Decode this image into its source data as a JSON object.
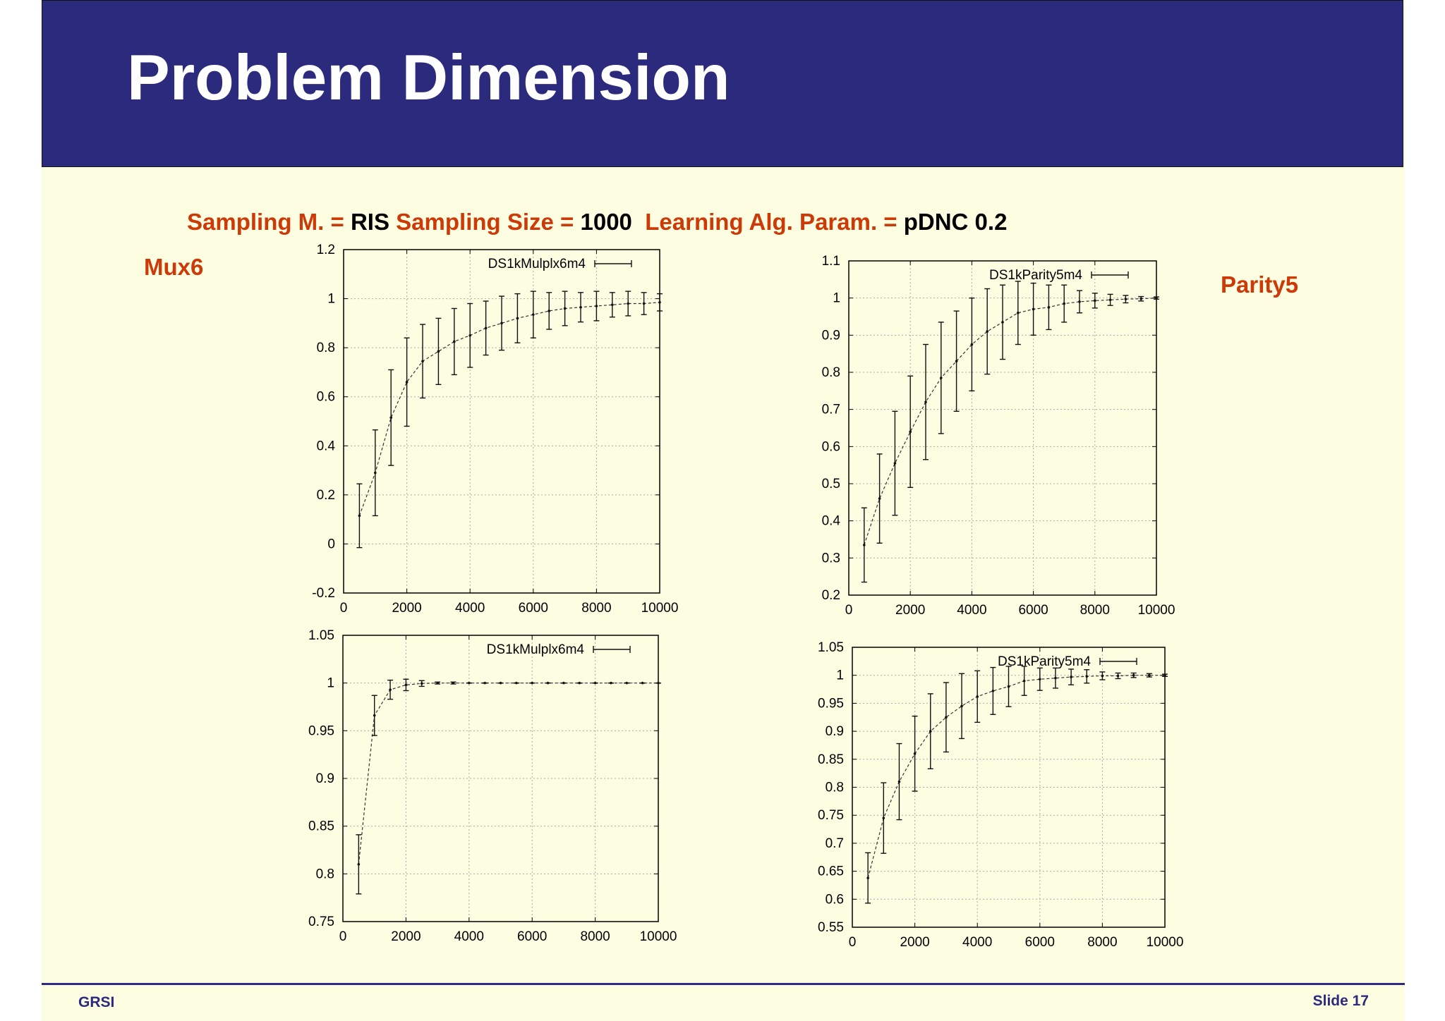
{
  "slide": {
    "title": "Problem Dimension",
    "params": {
      "sampling_method_label": "Sampling M. =",
      "sampling_method_value": "RIS",
      "sampling_size_label": "Sampling Size =",
      "sampling_size_value": "1000",
      "learning_param_label": "Learning Alg. Param. =",
      "learning_param_value": "pDNC 0.2"
    },
    "left_label": "Mux6",
    "right_label": "Parity5",
    "footer": {
      "left": "GRSI",
      "right": "Slide 17"
    }
  },
  "colors": {
    "header_bg": "#2b2a7d",
    "slide_bg": "#fdfde2",
    "accent": "#cc3a08",
    "text_dark": "#000000"
  },
  "chart_data": [
    {
      "type": "line",
      "legend": "DS1kMulplx6m4",
      "legend_position": "top-right",
      "grid": true,
      "xlim": [
        0,
        10000
      ],
      "ylim": [
        -0.2,
        1.2
      ],
      "xticks": [
        0,
        2000,
        4000,
        6000,
        8000,
        10000
      ],
      "yticks": [
        -0.2,
        0,
        0.2,
        0.4,
        0.6,
        0.8,
        1,
        1.2
      ],
      "ytick_labels": [
        "-0.2",
        "0",
        "0.2",
        "0.4",
        "0.6",
        "0.8",
        "1",
        "1.2"
      ],
      "x": [
        500,
        1000,
        1500,
        2000,
        2500,
        3000,
        3500,
        4000,
        4500,
        5000,
        5500,
        6000,
        6500,
        7000,
        7500,
        8000,
        8500,
        9000,
        9500,
        10000
      ],
      "y": [
        0.115,
        0.29,
        0.515,
        0.66,
        0.745,
        0.785,
        0.825,
        0.85,
        0.88,
        0.9,
        0.92,
        0.935,
        0.95,
        0.96,
        0.965,
        0.97,
        0.975,
        0.98,
        0.98,
        0.985
      ],
      "err": [
        0.13,
        0.175,
        0.195,
        0.18,
        0.15,
        0.135,
        0.135,
        0.13,
        0.11,
        0.11,
        0.1,
        0.095,
        0.075,
        0.07,
        0.06,
        0.06,
        0.05,
        0.05,
        0.045,
        0.035
      ]
    },
    {
      "type": "line",
      "legend": "DS1kParity5m4",
      "legend_position": "top-right",
      "grid": true,
      "xlim": [
        0,
        10000
      ],
      "ylim": [
        0.2,
        1.1
      ],
      "xticks": [
        0,
        2000,
        4000,
        6000,
        8000,
        10000
      ],
      "yticks": [
        0.2,
        0.3,
        0.4,
        0.5,
        0.6,
        0.7,
        0.8,
        0.9,
        1,
        1.1
      ],
      "ytick_labels": [
        "0.2",
        "0.3",
        "0.4",
        "0.5",
        "0.6",
        "0.7",
        "0.8",
        "0.9",
        "1",
        "1.1"
      ],
      "x": [
        500,
        1000,
        1500,
        2000,
        2500,
        3000,
        3500,
        4000,
        4500,
        5000,
        5500,
        6000,
        6500,
        7000,
        7500,
        8000,
        8500,
        9000,
        9500,
        10000
      ],
      "y": [
        0.335,
        0.46,
        0.555,
        0.64,
        0.72,
        0.785,
        0.83,
        0.875,
        0.91,
        0.935,
        0.96,
        0.97,
        0.975,
        0.985,
        0.99,
        0.993,
        0.995,
        0.997,
        0.998,
        1.0
      ],
      "err": [
        0.1,
        0.12,
        0.14,
        0.15,
        0.155,
        0.15,
        0.135,
        0.125,
        0.115,
        0.1,
        0.085,
        0.07,
        0.06,
        0.05,
        0.03,
        0.02,
        0.015,
        0.01,
        0.006,
        0.003
      ]
    },
    {
      "type": "line",
      "legend": "DS1kMulplx6m4",
      "legend_position": "top-right",
      "grid": true,
      "xlim": [
        0,
        10000
      ],
      "ylim": [
        0.75,
        1.05
      ],
      "xticks": [
        0,
        2000,
        4000,
        6000,
        8000,
        10000
      ],
      "yticks": [
        0.75,
        0.8,
        0.85,
        0.9,
        0.95,
        1,
        1.05
      ],
      "ytick_labels": [
        "0.75",
        "0.8",
        "0.85",
        "0.9",
        "0.95",
        "1",
        "1.05"
      ],
      "x": [
        500,
        1000,
        1500,
        2000,
        2500,
        3000,
        3500,
        4000,
        4500,
        5000,
        5500,
        6000,
        6500,
        7000,
        7500,
        8000,
        8500,
        9000,
        9500,
        10000
      ],
      "y": [
        0.81,
        0.966,
        0.993,
        0.998,
        0.9995,
        1,
        1,
        1,
        1,
        1,
        1,
        1,
        1,
        1,
        1,
        1,
        1,
        1,
        1,
        1
      ],
      "err": [
        0.031,
        0.021,
        0.01,
        0.006,
        0.003,
        0.001,
        0.001,
        0,
        0,
        0,
        0,
        0,
        0,
        0,
        0,
        0,
        0,
        0,
        0,
        0
      ]
    },
    {
      "type": "line",
      "legend": "DS1kParity5m4",
      "legend_position": "top-right",
      "grid": true,
      "xlim": [
        0,
        10000
      ],
      "ylim": [
        0.55,
        1.05
      ],
      "xticks": [
        0,
        2000,
        4000,
        6000,
        8000,
        10000
      ],
      "yticks": [
        0.55,
        0.6,
        0.65,
        0.7,
        0.75,
        0.8,
        0.85,
        0.9,
        0.95,
        1,
        1.05
      ],
      "ytick_labels": [
        "0.55",
        "0.6",
        "0.65",
        "0.7",
        "0.75",
        "0.8",
        "0.85",
        "0.9",
        "0.95",
        "1",
        "1.05"
      ],
      "x": [
        500,
        1000,
        1500,
        2000,
        2500,
        3000,
        3500,
        4000,
        4500,
        5000,
        5500,
        6000,
        6500,
        7000,
        7500,
        8000,
        8500,
        9000,
        9500,
        10000
      ],
      "y": [
        0.638,
        0.745,
        0.81,
        0.86,
        0.9,
        0.925,
        0.945,
        0.962,
        0.972,
        0.98,
        0.99,
        0.993,
        0.995,
        0.997,
        0.998,
        0.999,
        0.999,
        1,
        1,
        1
      ],
      "err": [
        0.045,
        0.063,
        0.068,
        0.067,
        0.067,
        0.062,
        0.058,
        0.046,
        0.042,
        0.036,
        0.026,
        0.02,
        0.018,
        0.014,
        0.012,
        0.007,
        0.005,
        0.004,
        0.003,
        0.002
      ]
    }
  ]
}
